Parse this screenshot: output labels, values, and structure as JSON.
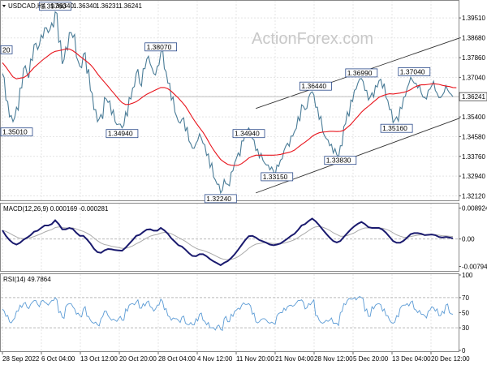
{
  "chart_data": [
    {
      "type": "line",
      "title": "USDCAD,H4",
      "ohlc": [
        "1.36340",
        "1.36340",
        "1.36231",
        "1.36241"
      ],
      "watermark": "ActionForex.com",
      "y_ticks": [
        "1.39510",
        "1.38680",
        "1.37860",
        "1.37040",
        "1.36241",
        "1.35400",
        "1.34580",
        "1.33760",
        "1.32940",
        "1.32120"
      ],
      "x_ticks": [
        "28 Sep 2022",
        "6 Oct 04:00",
        "13 Oct 12:00",
        "20 Oct 20:00",
        "28 Oct 04:00",
        "4 Nov 12:00",
        "11 Nov 20:00",
        "21 Nov 04:00",
        "28 Nov 12:00",
        "5 Dec 20:00",
        "13 Dec 04:00",
        "20 Dec 12:00"
      ],
      "ylim": [
        1.32,
        1.3985
      ],
      "current_price": 1.36241,
      "annotations": [
        {
          "text": "1.39760",
          "x": 15,
          "y": 1.3976
        },
        {
          "text": "1.35010",
          "x": 2,
          "y": 1.3501
        },
        {
          "text": "1.38070",
          "x": 45,
          "y": 1.3807
        },
        {
          "text": "1.34940",
          "x": 34,
          "y": 1.3494
        },
        {
          "text": "1.32240",
          "x": 62,
          "y": 1.3224
        },
        {
          "text": "1.33150",
          "x": 78,
          "y": 1.3315
        },
        {
          "text": "1.34940",
          "x": 70,
          "y": 1.3494
        },
        {
          "text": "1.33830",
          "x": 96,
          "y": 1.3383
        },
        {
          "text": "1.36440",
          "x": 89,
          "y": 1.3644
        },
        {
          "text": "1.36990",
          "x": 102,
          "y": 1.3699
        },
        {
          "text": "1.37040",
          "x": 117,
          "y": 1.3704
        },
        {
          "text": "1.35160",
          "x": 112,
          "y": 1.3516
        },
        {
          "text": "20",
          "x": 0,
          "y": 1.3795
        }
      ],
      "price": [
        1.372,
        1.361,
        1.354,
        1.352,
        1.358,
        1.366,
        1.374,
        1.372,
        1.378,
        1.384,
        1.382,
        1.388,
        1.391,
        1.389,
        1.393,
        1.3976,
        1.385,
        1.376,
        1.383,
        1.389,
        1.387,
        1.379,
        1.375,
        1.38,
        1.372,
        1.365,
        1.357,
        1.352,
        1.355,
        1.362,
        1.36,
        1.355,
        1.352,
        1.351,
        1.3494,
        1.356,
        1.362,
        1.366,
        1.372,
        1.368,
        1.374,
        1.378,
        1.376,
        1.372,
        1.375,
        1.3807,
        1.374,
        1.368,
        1.361,
        1.356,
        1.352,
        1.353,
        1.348,
        1.344,
        1.341,
        1.343,
        1.347,
        1.343,
        1.338,
        1.333,
        1.329,
        1.326,
        1.3224,
        1.328,
        1.326,
        1.331,
        1.335,
        1.339,
        1.344,
        1.347,
        1.3494,
        1.345,
        1.34,
        1.337,
        1.336,
        1.334,
        1.332,
        1.3315,
        1.334,
        1.336,
        1.34,
        1.343,
        1.346,
        1.348,
        1.354,
        1.359,
        1.357,
        1.362,
        1.3644,
        1.358,
        1.353,
        1.348,
        1.345,
        1.342,
        1.339,
        1.3383,
        1.342,
        1.35,
        1.356,
        1.361,
        1.365,
        1.368,
        1.3699,
        1.365,
        1.361,
        1.364,
        1.367,
        1.369,
        1.366,
        1.362,
        1.357,
        1.3516,
        1.354,
        1.358,
        1.362,
        1.366,
        1.3704,
        1.368,
        1.366,
        1.364,
        1.362,
        1.365,
        1.367,
        1.365,
        1.362,
        1.363,
        1.367,
        1.364,
        1.3624
      ],
      "ma": [
        1.3765,
        1.3747,
        1.3726,
        1.3706,
        1.3698,
        1.3701,
        1.3703,
        1.3712,
        1.3729,
        1.3745,
        1.3758,
        1.3771,
        1.3783,
        1.3794,
        1.3805,
        1.3812,
        1.3815,
        1.3818,
        1.3822,
        1.3822,
        1.3815,
        1.3804,
        1.3792,
        1.3781,
        1.3769,
        1.3757,
        1.374,
        1.3719,
        1.3701,
        1.3684,
        1.3667,
        1.3649,
        1.3632,
        1.3614,
        1.3599,
        1.3591,
        1.3592,
        1.3597,
        1.3603,
        1.3613,
        1.3624,
        1.3634,
        1.3641,
        1.3648,
        1.3655,
        1.3662,
        1.3662,
        1.3657,
        1.3646,
        1.3632,
        1.3618,
        1.3602,
        1.3584,
        1.3561,
        1.3537,
        1.3515,
        1.3495,
        1.3476,
        1.3452,
        1.3426,
        1.3402,
        1.3382,
        1.3363,
        1.3352,
        1.3343,
        1.3339,
        1.3338,
        1.3339,
        1.3346,
        1.3357,
        1.3369,
        1.3376,
        1.3381,
        1.3381,
        1.3381,
        1.3381,
        1.3381,
        1.3381,
        1.3382,
        1.3384,
        1.3388,
        1.3391,
        1.3395,
        1.3402,
        1.3414,
        1.3425,
        1.3435,
        1.3446,
        1.3459,
        1.3468,
        1.3474,
        1.3477,
        1.3478,
        1.348,
        1.348,
        1.3479,
        1.348,
        1.3484,
        1.3496,
        1.3509,
        1.3526,
        1.3542,
        1.3559,
        1.3573,
        1.3584,
        1.3597,
        1.3609,
        1.3621,
        1.3628,
        1.3633,
        1.3636,
        1.3635,
        1.3637,
        1.3639,
        1.3642,
        1.3646,
        1.3653,
        1.3663,
        1.3669,
        1.3673,
        1.3673,
        1.3675,
        1.3677,
        1.3677,
        1.3675,
        1.3671,
        1.3668,
        1.3666,
        1.3662,
        1.3661
      ],
      "channel": {
        "upper": {
          "x1": 72,
          "y1": 1.3575,
          "x2": 130,
          "y2": 1.3868
        },
        "lower": {
          "x1": 72,
          "y1": 1.3224,
          "x2": 130,
          "y2": 1.3535
        }
      },
      "colors": {
        "price": "#4a7c97",
        "ma": "#e8141c",
        "channel": "#333333",
        "grid": "#d8d8d8",
        "label_border": "#2a4a8a"
      }
    },
    {
      "type": "line",
      "title": "MACD(12,26,9) 0.000169 -0.000281",
      "y_ticks": [
        "0.008924",
        "0.00",
        "-0.007942"
      ],
      "ylim": [
        -0.009,
        0.01
      ],
      "macd": [
        0.0025,
        0.0009,
        -0.0003,
        -0.0012,
        -0.0016,
        -0.0011,
        -0.0002,
        0.0004,
        0.0011,
        0.0021,
        0.0024,
        0.0032,
        0.0039,
        0.0039,
        0.0043,
        0.0054,
        0.0043,
        0.0028,
        0.0028,
        0.0032,
        0.0029,
        0.0018,
        0.0009,
        0.0009,
        -0.0001,
        -0.0013,
        -0.0028,
        -0.0038,
        -0.004,
        -0.0033,
        -0.0029,
        -0.003,
        -0.0032,
        -0.0033,
        -0.0034,
        -0.0025,
        -0.0014,
        -0.0003,
        0.0009,
        0.0012,
        0.002,
        0.0027,
        0.0028,
        0.0024,
        0.0024,
        0.0032,
        0.0025,
        0.0015,
        0.0002,
        -0.0008,
        -0.0018,
        -0.0022,
        -0.0031,
        -0.0041,
        -0.0049,
        -0.005,
        -0.0044,
        -0.0044,
        -0.005,
        -0.0058,
        -0.0065,
        -0.007,
        -0.0076,
        -0.0069,
        -0.0064,
        -0.0055,
        -0.0044,
        -0.0031,
        -0.0017,
        -0.0003,
        0.0008,
        0.0009,
        0.0004,
        -0.0003,
        -0.0007,
        -0.0011,
        -0.0016,
        -0.0018,
        -0.0016,
        -0.0013,
        -0.0006,
        0.0001,
        0.0009,
        0.0015,
        0.0026,
        0.0039,
        0.0043,
        0.0052,
        0.0059,
        0.0051,
        0.004,
        0.0027,
        0.0015,
        0.0004,
        -0.0006,
        -0.001,
        -0.0006,
        0.0006,
        0.0017,
        0.0028,
        0.0037,
        0.0044,
        0.0049,
        0.0043,
        0.0034,
        0.0032,
        0.0032,
        0.0032,
        0.0027,
        0.0018,
        0.0006,
        -0.0006,
        -0.0011,
        -0.0011,
        -0.0005,
        0.0004,
        0.0014,
        0.0017,
        0.0017,
        0.0015,
        0.0011,
        0.0012,
        0.0013,
        0.0011,
        0.0006,
        0.0004,
        0.0006,
        0.0004,
        0.0002
      ],
      "signal": [
        0.0025,
        0.0022,
        0.0017,
        0.0011,
        0.0006,
        0.0002,
        0.0001,
        0.0002,
        0.0004,
        0.0007,
        0.0011,
        0.0015,
        0.002,
        0.0024,
        0.0027,
        0.0033,
        0.0035,
        0.0033,
        0.0032,
        0.0032,
        0.0032,
        0.0029,
        0.0025,
        0.0022,
        0.0017,
        0.0011,
        0.0003,
        -0.0005,
        -0.0012,
        -0.0016,
        -0.0018,
        -0.0021,
        -0.0023,
        -0.0025,
        -0.0027,
        -0.0027,
        -0.0024,
        -0.002,
        -0.0014,
        -0.0009,
        -0.0003,
        0.0003,
        0.0008,
        0.0011,
        0.0013,
        0.0017,
        0.0019,
        0.0018,
        0.0015,
        0.001,
        0.0004,
        -0.0001,
        -0.0007,
        -0.0014,
        -0.0021,
        -0.0027,
        -0.0031,
        -0.0033,
        -0.0037,
        -0.0041,
        -0.0046,
        -0.0051,
        -0.0056,
        -0.0059,
        -0.006,
        -0.0059,
        -0.0056,
        -0.0051,
        -0.0044,
        -0.0036,
        -0.0027,
        -0.002,
        -0.0015,
        -0.0013,
        -0.0011,
        -0.0011,
        -0.0012,
        -0.0013,
        -0.0013,
        -0.0013,
        -0.0012,
        -0.0009,
        -0.0006,
        -0.0002,
        0.0004,
        0.0011,
        0.0017,
        0.0024,
        0.0031,
        0.0035,
        0.0036,
        0.0034,
        0.003,
        0.0025,
        0.0018,
        0.0013,
        0.0008,
        0.0008,
        0.001,
        0.0014,
        0.0018,
        0.0024,
        0.0029,
        0.0032,
        0.0032,
        0.0032,
        0.0032,
        0.0032,
        0.0031,
        0.0028,
        0.0024,
        0.0018,
        0.0012,
        0.0008,
        0.0005,
        0.0005,
        0.0007,
        0.0009,
        0.0011,
        0.0012,
        0.0012,
        0.0012,
        0.0012,
        0.0012,
        0.0011,
        0.0009,
        0.0009,
        0.0008,
        0.0007
      ],
      "colors": {
        "macd": "#1a1a6e",
        "signal": "#aaaaaa"
      }
    },
    {
      "type": "line",
      "title": "RSI(14) 49.7864",
      "y_ticks": [
        "100",
        "70",
        "50",
        "30",
        "0"
      ],
      "ylim": [
        0,
        100
      ],
      "rsi": [
        55,
        45,
        38,
        40,
        52,
        60,
        62,
        57,
        61,
        66,
        61,
        65,
        64,
        60,
        66,
        70,
        50,
        44,
        58,
        62,
        58,
        48,
        46,
        55,
        45,
        40,
        36,
        34,
        42,
        52,
        46,
        40,
        40,
        42,
        40,
        55,
        60,
        62,
        64,
        56,
        62,
        64,
        58,
        52,
        60,
        68,
        54,
        46,
        40,
        42,
        40,
        44,
        36,
        34,
        34,
        42,
        48,
        40,
        34,
        30,
        30,
        32,
        28,
        42,
        38,
        48,
        52,
        56,
        60,
        61,
        62,
        48,
        38,
        38,
        42,
        40,
        36,
        36,
        46,
        50,
        56,
        58,
        60,
        60,
        66,
        67,
        55,
        62,
        64,
        46,
        40,
        36,
        40,
        40,
        36,
        36,
        50,
        62,
        66,
        68,
        70,
        70,
        70,
        52,
        45,
        58,
        60,
        62,
        52,
        46,
        40,
        36,
        46,
        56,
        60,
        62,
        64,
        55,
        50,
        48,
        46,
        52,
        58,
        52,
        46,
        52,
        60,
        50,
        48
      ]
    }
  ]
}
